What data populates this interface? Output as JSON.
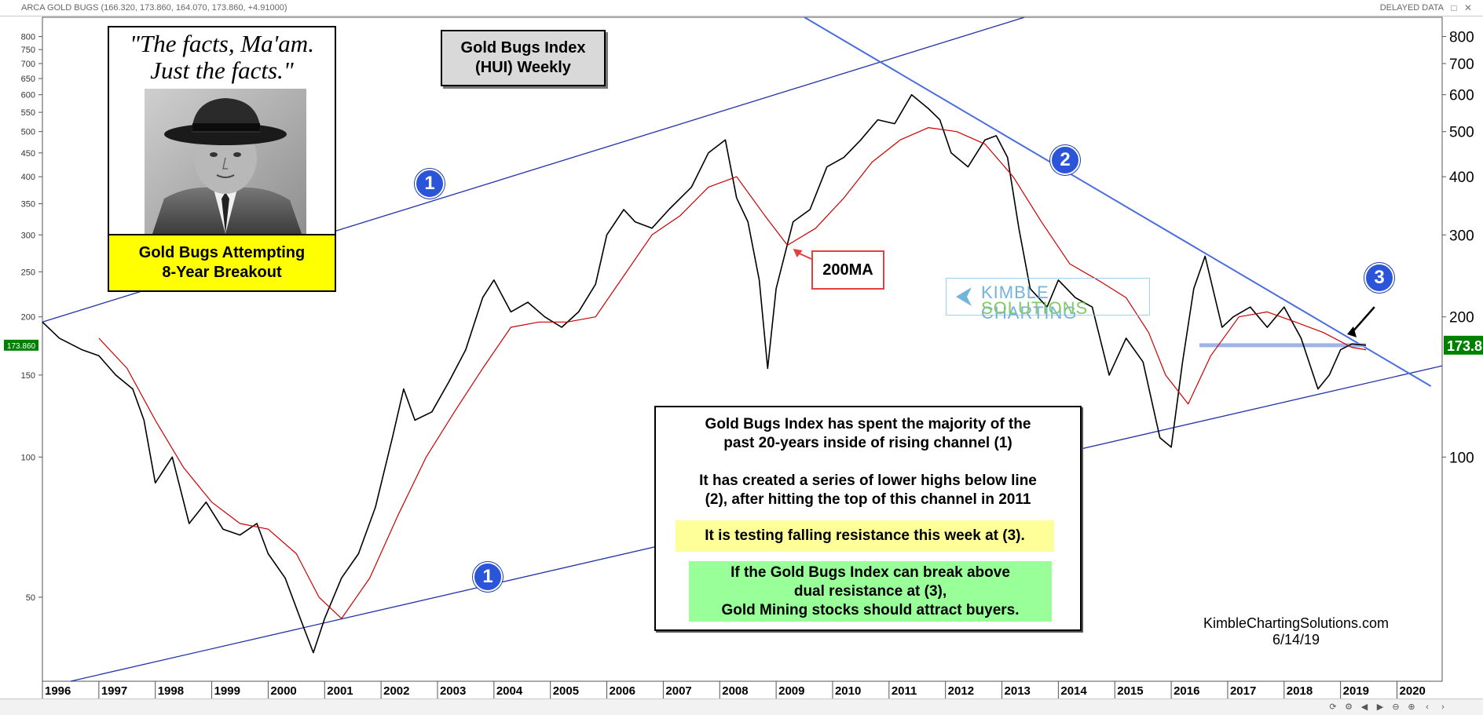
{
  "header": {
    "symbol_line": "ARCA GOLD BUGS (166.320, 173.860, 164.070, 173.860, +4.91000)",
    "delayed": "DELAYED DATA"
  },
  "panels": {
    "quote": "\"The facts, Ma'am. Just the facts.\"",
    "quote_l1": "\"The facts, Ma'am.",
    "quote_l2": "Just the facts.\"",
    "breakout_l1": "Gold Bugs Attempting",
    "breakout_l2": "8-Year Breakout",
    "ma_label": "200MA",
    "note": {
      "p1_l1": "Gold Bugs Index has spent the majority of the",
      "p1_l2": "past 20-years inside of rising channel (1)",
      "p2_l1": "It has created a series of lower highs below line",
      "p2_l2": "(2), after hitting the top of this channel in 2011",
      "p3": "It is testing falling resistance this week at (3).",
      "p4_l1": "If the Gold Bugs Index can break above",
      "p4_l2": "dual resistance at (3),",
      "p4_l3": "Gold Mining stocks should attract buyers."
    },
    "watermark_l1": "KIMBLE CHARTING",
    "watermark_l2": "SOLUTIONS",
    "credit_site": "KimbleChartingSolutions.com",
    "credit_date": "6/14/19"
  },
  "markers": [
    "1",
    "1",
    "2",
    "3"
  ],
  "chart_data": {
    "type": "line",
    "title": "Gold Bugs Index (HUI) Weekly",
    "title_l1": "Gold Bugs Index",
    "title_l2": "(HUI) Weekly",
    "y_scale": "log",
    "ylim": [
      33,
      880
    ],
    "xlim": [
      1996.0,
      2020.8
    ],
    "y_ticks_left": [
      50,
      100,
      150,
      200,
      250,
      300,
      350,
      400,
      450,
      500,
      550,
      600,
      650,
      700,
      750,
      800
    ],
    "y_ticks_right": [
      100,
      200,
      300,
      400,
      500,
      600,
      700,
      800
    ],
    "x_ticks": [
      "1996",
      "1997",
      "1998",
      "1999",
      "2000",
      "2001",
      "2002",
      "2003",
      "2004",
      "2005",
      "2006",
      "2007",
      "2008",
      "2009",
      "2010",
      "2011",
      "2012",
      "2013",
      "2014",
      "2015",
      "2016",
      "2017",
      "2018",
      "2019",
      "2020"
    ],
    "last_value": "173.860",
    "last_value_right": "173.8",
    "grid": false,
    "colors": {
      "price": "#000000",
      "ma": "#cc0000",
      "trend": "#2233aa",
      "resist": "#4a6ee0",
      "support_zone": "#9fb3ea",
      "last_label": "#008000"
    },
    "series": [
      {
        "name": "HUI",
        "x": [
          1996.0,
          1996.3,
          1996.7,
          1997.0,
          1997.3,
          1997.6,
          1997.8,
          1998.0,
          1998.3,
          1998.6,
          1998.9,
          1999.2,
          1999.5,
          1999.8,
          2000.0,
          2000.3,
          2000.6,
          2000.8,
          2001.0,
          2001.3,
          2001.6,
          2001.9,
          2002.2,
          2002.4,
          2002.6,
          2002.9,
          2003.2,
          2003.5,
          2003.8,
          2004.0,
          2004.3,
          2004.6,
          2004.9,
          2005.2,
          2005.5,
          2005.8,
          2006.0,
          2006.3,
          2006.5,
          2006.8,
          2007.1,
          2007.5,
          2007.8,
          2008.1,
          2008.3,
          2008.5,
          2008.7,
          2008.85,
          2009.0,
          2009.3,
          2009.6,
          2009.9,
          2010.2,
          2010.5,
          2010.8,
          2011.1,
          2011.4,
          2011.7,
          2011.9,
          2012.1,
          2012.4,
          2012.7,
          2012.9,
          2013.1,
          2013.3,
          2013.5,
          2013.8,
          2014.0,
          2014.3,
          2014.6,
          2014.9,
          2015.2,
          2015.5,
          2015.8,
          2016.0,
          2016.2,
          2016.4,
          2016.6,
          2016.9,
          2017.1,
          2017.4,
          2017.7,
          2018.0,
          2018.3,
          2018.6,
          2018.8,
          2019.0,
          2019.2,
          2019.45
        ],
        "values": [
          195,
          180,
          170,
          165,
          150,
          140,
          120,
          88,
          100,
          72,
          80,
          70,
          68,
          72,
          62,
          55,
          44,
          38,
          45,
          55,
          62,
          78,
          110,
          140,
          120,
          125,
          145,
          170,
          220,
          240,
          205,
          215,
          200,
          190,
          205,
          235,
          300,
          340,
          320,
          310,
          340,
          380,
          450,
          480,
          360,
          320,
          240,
          155,
          230,
          320,
          340,
          420,
          440,
          480,
          530,
          520,
          600,
          560,
          530,
          450,
          420,
          480,
          490,
          440,
          310,
          230,
          210,
          240,
          220,
          210,
          150,
          180,
          160,
          110,
          105,
          160,
          230,
          270,
          190,
          200,
          210,
          190,
          210,
          180,
          140,
          150,
          170,
          175,
          173.86
        ]
      },
      {
        "name": "200MA",
        "x": [
          1997.0,
          1997.5,
          1998.0,
          1998.5,
          1999.0,
          1999.5,
          2000.0,
          2000.5,
          2000.9,
          2001.3,
          2001.8,
          2002.3,
          2002.8,
          2003.3,
          2003.8,
          2004.3,
          2004.8,
          2005.3,
          2005.8,
          2006.3,
          2006.8,
          2007.3,
          2007.8,
          2008.3,
          2008.8,
          2009.2,
          2009.7,
          2010.2,
          2010.7,
          2011.2,
          2011.7,
          2012.2,
          2012.7,
          2013.2,
          2013.7,
          2014.2,
          2014.7,
          2015.2,
          2015.6,
          2015.9,
          2016.3,
          2016.7,
          2017.2,
          2017.7,
          2018.2,
          2018.7,
          2019.2,
          2019.45
        ],
        "values": [
          180,
          155,
          120,
          95,
          80,
          72,
          70,
          62,
          50,
          45,
          55,
          75,
          100,
          125,
          155,
          190,
          195,
          195,
          200,
          245,
          300,
          330,
          380,
          400,
          330,
          285,
          310,
          360,
          430,
          480,
          510,
          500,
          470,
          400,
          320,
          260,
          240,
          220,
          185,
          150,
          130,
          165,
          200,
          205,
          195,
          185,
          172,
          170
        ]
      }
    ]
  }
}
